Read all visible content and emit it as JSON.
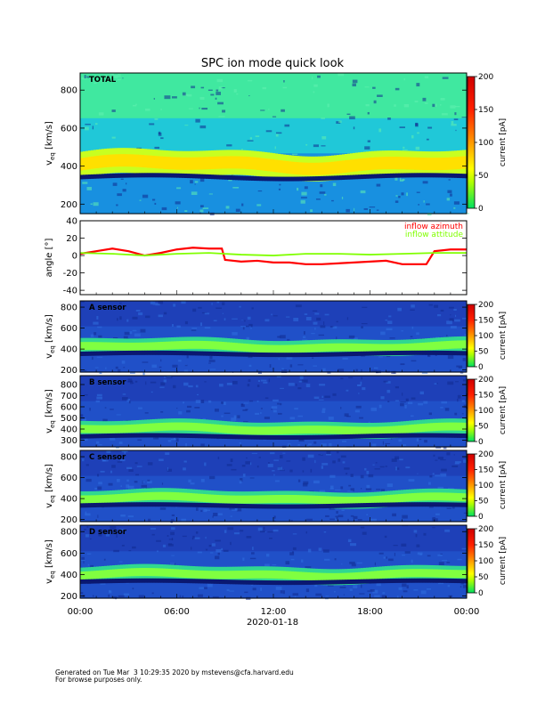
{
  "title": "SPC ion mode quick look",
  "date_label": "2020-01-18",
  "time_ticks": [
    "00:00",
    "06:00",
    "12:00",
    "18:00",
    "00:00"
  ],
  "footer": {
    "line1": "Generated on Tue Mar  3 10:29:35 2020 by mstevens@cfa.harvard.edu",
    "line2": "For browse purposes only."
  },
  "colorbar_ticks": [
    "0",
    "50",
    "100",
    "150",
    "200"
  ],
  "colorbar_label": "current [pA]",
  "chart_data": [
    {
      "type": "heatmap",
      "panel": "TOTAL",
      "label": "TOTAL",
      "ylabel": "v_eq [km/s]",
      "yticks": [
        200,
        400,
        600,
        800
      ],
      "ylim": [
        150,
        890
      ],
      "xlim": [
        "00:00",
        "24:00"
      ],
      "colorbar": {
        "label": "current [pA]",
        "range": [
          0,
          200
        ],
        "ticks": [
          0,
          50,
          100,
          150,
          200
        ],
        "colormap": "green-yellow-red"
      },
      "background": "cyan-green",
      "core_velocity_kms": {
        "x_hours": [
          0,
          3,
          4,
          6,
          9,
          12,
          15,
          18,
          21,
          24
        ],
        "v": [
          400,
          400,
          395,
          415,
          420,
          400,
          425,
          420,
          420,
          400
        ]
      }
    },
    {
      "type": "line",
      "panel": "angle",
      "ylabel": "angle [°]",
      "ylim": [
        -45,
        40
      ],
      "yticks": [
        -40,
        -20,
        0,
        20,
        40
      ],
      "xlim": [
        "00:00",
        "24:00"
      ],
      "series": [
        {
          "name": "inflow azimuth",
          "color": "#ff0000",
          "x_hours": [
            0,
            1,
            2,
            3,
            4,
            5,
            6,
            7,
            8,
            8.8,
            9,
            10,
            11,
            12,
            13,
            14,
            15,
            16,
            17,
            18,
            19,
            20,
            21,
            21.5,
            22,
            23,
            24
          ],
          "values": [
            2,
            5,
            8,
            5,
            0,
            3,
            7,
            9,
            8,
            8,
            -5,
            -7,
            -6,
            -8,
            -8,
            -10,
            -10,
            -9,
            -8,
            -7,
            -6,
            -10,
            -10,
            -10,
            5,
            7,
            7
          ]
        },
        {
          "name": "inflow attitude",
          "color": "#80ff00",
          "x_hours": [
            0,
            2,
            4,
            6,
            8,
            10,
            12,
            14,
            16,
            18,
            20,
            22,
            24
          ],
          "values": [
            3,
            2,
            0,
            2,
            3,
            1,
            0,
            2,
            2,
            1,
            2,
            3,
            3
          ]
        }
      ]
    },
    {
      "type": "heatmap",
      "panel": "A sensor",
      "label": "A sensor",
      "ylabel": "v_eq [km/s]",
      "yticks": [
        200,
        400,
        600,
        800
      ],
      "ylim": [
        180,
        860
      ],
      "xlim": [
        "00:00",
        "24:00"
      ],
      "colorbar": {
        "label": "current [pA]",
        "range": [
          0,
          200
        ],
        "ticks": [
          0,
          50,
          100,
          150,
          200
        ],
        "colormap": "green-yellow-red"
      }
    },
    {
      "type": "heatmap",
      "panel": "B sensor",
      "label": "B sensor",
      "ylabel": "v_eq [km/s]",
      "yticks": [
        300,
        400,
        500,
        600,
        700,
        800
      ],
      "ylim": [
        240,
        880
      ],
      "xlim": [
        "00:00",
        "24:00"
      ],
      "colorbar": {
        "label": "current [pA]",
        "range": [
          0,
          200
        ],
        "ticks": [
          0,
          50,
          100,
          150,
          200
        ],
        "colormap": "green-yellow-red"
      }
    },
    {
      "type": "heatmap",
      "panel": "C sensor",
      "label": "C sensor",
      "ylabel": "v_eq [km/s]",
      "yticks": [
        200,
        400,
        600,
        800
      ],
      "ylim": [
        180,
        860
      ],
      "xlim": [
        "00:00",
        "24:00"
      ],
      "colorbar": {
        "label": "current [pA]",
        "range": [
          0,
          200
        ],
        "ticks": [
          0,
          50,
          100,
          150,
          200
        ],
        "colormap": "green-yellow-red"
      }
    },
    {
      "type": "heatmap",
      "panel": "D sensor",
      "label": "D sensor",
      "ylabel": "v_eq [km/s]",
      "yticks": [
        200,
        400,
        600,
        800
      ],
      "ylim": [
        180,
        860
      ],
      "xlim": [
        "00:00",
        "24:00"
      ],
      "colorbar": {
        "label": "current [pA]",
        "range": [
          0,
          200
        ],
        "ticks": [
          0,
          50,
          100,
          150,
          200
        ],
        "colormap": "green-yellow-red"
      }
    }
  ]
}
